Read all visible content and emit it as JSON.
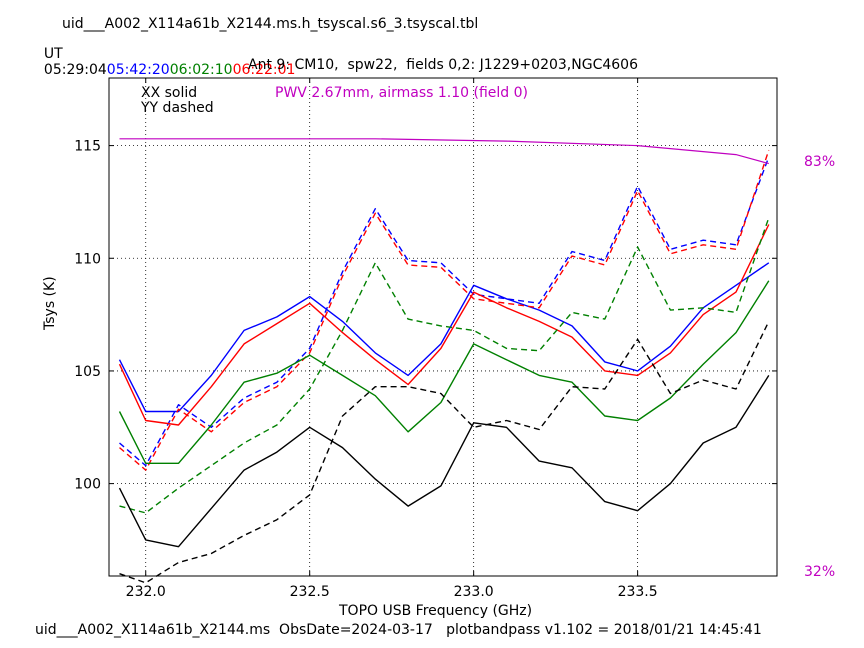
{
  "header": {
    "table_name": "uid___A002_X114a61b_X2144.ms.h_tsyscal.s6_3.tsyscal.tbl",
    "ut_prefix": "UT",
    "times": [
      {
        "text": "05:29:04",
        "color": "#000000"
      },
      {
        "text": "05:42:20",
        "color": "#0000ff"
      },
      {
        "text": "06:02:10",
        "color": "#008000"
      },
      {
        "text": "06:22:01",
        "color": "#ff0000"
      }
    ]
  },
  "footer": {
    "text": "uid___A002_X114a61b_X2144.ms  ObsDate=2024-03-17   plotbandpass v1.102 = 2018/01/21 14:45:41"
  },
  "chart_data": {
    "type": "line",
    "title": "Ant 9: CM10,  spw22,  fields 0,2: J1229+0203,NGC4606",
    "xlabel": "TOPO USB Frequency (GHz)",
    "ylabel": "Tsys (K)",
    "xlim": [
      231.888,
      233.925
    ],
    "ylim": [
      95.9,
      118.0
    ],
    "xticks": [
      "232.0",
      "232.5",
      "233.0",
      "233.5"
    ],
    "xtick_values": [
      232.0,
      232.5,
      233.0,
      233.5
    ],
    "yticks": [
      "100",
      "105",
      "110",
      "115"
    ],
    "ytick_values": [
      100,
      105,
      110,
      115
    ],
    "grid": true,
    "legend": {
      "xx": "XX solid",
      "yy": "YY dashed",
      "placement": "top-left"
    },
    "annotation": {
      "text": "PWV 2.67mm, airmass 1.10 (field 0)",
      "color": "#c000c0"
    },
    "right_axis": {
      "top_label": "83%",
      "bottom_label": "32%",
      "color": "#c000c0",
      "top_value": 83,
      "bottom_value": 32
    },
    "x": [
      231.92,
      232.0,
      232.1,
      232.2,
      232.3,
      232.4,
      232.5,
      232.6,
      232.7,
      232.8,
      232.9,
      233.0,
      233.1,
      233.2,
      233.3,
      233.4,
      233.5,
      233.6,
      233.7,
      233.8,
      233.9
    ],
    "series": [
      {
        "color": "#0000ff",
        "pol": "XX",
        "dash": false,
        "values": [
          105.5,
          103.2,
          103.2,
          104.8,
          106.8,
          107.4,
          108.3,
          107.2,
          105.8,
          104.8,
          106.2,
          108.8,
          108.2,
          107.7,
          107.0,
          105.4,
          105.0,
          106.1,
          107.8,
          108.8,
          109.8
        ]
      },
      {
        "color": "#0000ff",
        "pol": "YY",
        "dash": true,
        "values": [
          101.8,
          100.8,
          103.5,
          102.5,
          103.8,
          104.5,
          106.0,
          109.4,
          112.2,
          109.9,
          109.8,
          108.4,
          108.2,
          108.0,
          110.3,
          109.9,
          113.2,
          110.4,
          110.8,
          110.6,
          114.5
        ]
      },
      {
        "color": "#ff0000",
        "pol": "XX",
        "dash": false,
        "values": [
          105.3,
          102.8,
          102.6,
          104.3,
          106.2,
          107.1,
          108.0,
          106.7,
          105.5,
          104.4,
          106.0,
          108.5,
          107.8,
          107.2,
          106.5,
          105.0,
          104.8,
          105.8,
          107.5,
          108.5,
          111.5
        ]
      },
      {
        "color": "#ff0000",
        "pol": "YY",
        "dash": true,
        "values": [
          101.6,
          100.6,
          103.3,
          102.3,
          103.6,
          104.3,
          105.8,
          109.2,
          112.0,
          109.7,
          109.6,
          108.2,
          108.0,
          107.8,
          110.1,
          109.7,
          113.0,
          110.2,
          110.6,
          110.4,
          114.8
        ]
      },
      {
        "color": "#008000",
        "pol": "XX",
        "dash": false,
        "values": [
          103.2,
          100.9,
          100.9,
          102.6,
          104.5,
          104.9,
          105.7,
          104.8,
          103.9,
          102.3,
          103.6,
          106.2,
          105.5,
          104.8,
          104.5,
          103.0,
          102.8,
          103.8,
          105.3,
          106.7,
          109.0
        ]
      },
      {
        "color": "#008000",
        "pol": "YY",
        "dash": true,
        "values": [
          99.0,
          98.7,
          99.8,
          100.8,
          101.8,
          102.6,
          104.2,
          106.8,
          109.8,
          107.3,
          107.0,
          106.8,
          106.0,
          105.9,
          107.6,
          107.3,
          110.5,
          107.7,
          107.8,
          107.6,
          111.8
        ]
      },
      {
        "color": "#000000",
        "pol": "XX",
        "dash": false,
        "values": [
          99.8,
          97.5,
          97.2,
          98.9,
          100.6,
          101.4,
          102.5,
          101.6,
          100.2,
          99.0,
          99.9,
          102.7,
          102.5,
          101.0,
          100.7,
          99.2,
          98.8,
          100.0,
          101.8,
          102.5,
          104.8
        ]
      },
      {
        "color": "#000000",
        "pol": "YY",
        "dash": true,
        "values": [
          96.0,
          95.6,
          96.5,
          96.9,
          97.7,
          98.4,
          99.5,
          103.0,
          104.3,
          104.3,
          104.0,
          102.5,
          102.8,
          102.4,
          104.3,
          104.2,
          106.4,
          104.0,
          104.6,
          104.2,
          107.2
        ]
      }
    ],
    "atm_curve": {
      "color": "#c000c0",
      "x": [
        231.92,
        232.3,
        232.7,
        233.1,
        233.5,
        233.8,
        233.9
      ],
      "values": [
        115.3,
        115.3,
        115.3,
        115.2,
        115.0,
        114.6,
        114.2
      ]
    }
  }
}
